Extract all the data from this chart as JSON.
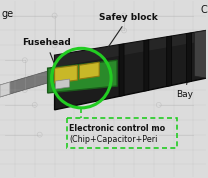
{
  "bg_color": "#dcdcdc",
  "circuit_line_color": "#b0b0b0",
  "detonator_dark": "#1c1c1c",
  "detonator_mid": "#383838",
  "detonator_light": "#555555",
  "wire_color": "#787878",
  "wire_light": "#b0b0b0",
  "pcb_color": "#2a8a2a",
  "comp_color": "#c8b828",
  "comp_edge": "#907810",
  "chip_color": "#c8c8c8",
  "green_circle": "#22cc22",
  "green_box": "#22cc22",
  "arrow_color": "#222222",
  "text_color": "#111111",
  "label_ge": "ge",
  "label_C": "C",
  "label_fusehead": "Fusehead",
  "label_safey": "Safey block",
  "label_bay": "Bay",
  "label_ecm1": "Electronic control mo",
  "label_ecm2": "(Chip+Capacitor+Peri"
}
